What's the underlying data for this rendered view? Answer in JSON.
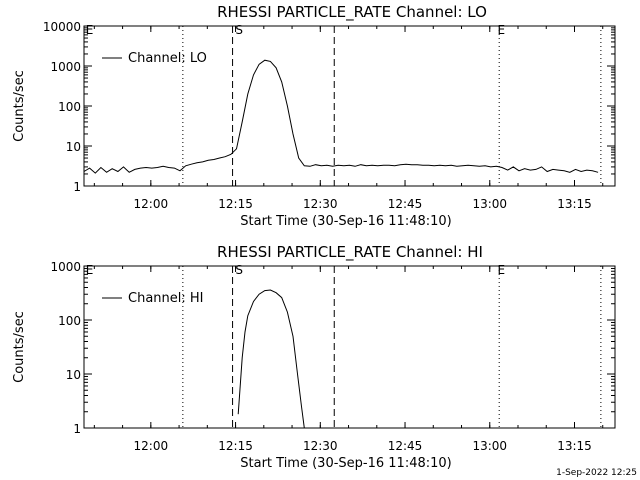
{
  "footer_timestamp": "1-Sep-2022 12:25",
  "chart_data": [
    {
      "type": "line",
      "title": "RHESSI PARTICLE_RATE Channel: LO",
      "xlabel": "Start Time (30-Sep-16 11:48:10)",
      "ylabel": "Counts/sec",
      "legend": "Channel: LO",
      "legend_position": "top-left",
      "yscale": "log",
      "x_unit": "minutes after 11:48:10",
      "xlim": [
        0,
        94
      ],
      "ylim": [
        1,
        10000
      ],
      "x_ticks": [
        {
          "x": 11.83,
          "label": "12:00"
        },
        {
          "x": 26.83,
          "label": "12:15"
        },
        {
          "x": 41.83,
          "label": "12:30"
        },
        {
          "x": 56.83,
          "label": "12:45"
        },
        {
          "x": 71.83,
          "label": "13:00"
        },
        {
          "x": 86.83,
          "label": "13:15"
        }
      ],
      "y_ticks": [
        {
          "y": 1,
          "label": "1"
        },
        {
          "y": 10,
          "label": "10"
        },
        {
          "y": 100,
          "label": "100"
        },
        {
          "y": 1000,
          "label": "1000"
        },
        {
          "y": 10000,
          "label": "10000"
        }
      ],
      "dotted_lines_x": [
        17.5,
        73.5,
        91.5
      ],
      "dashed_lines_x": [
        26.3,
        44.3
      ],
      "markers": [
        {
          "x": 0.3,
          "label": "E"
        },
        {
          "x": 26.8,
          "label": "S"
        },
        {
          "x": 73.2,
          "label": "E"
        }
      ],
      "series": [
        {
          "name": "Channel: LO",
          "x": [
            0,
            1,
            2,
            3,
            4,
            5,
            6,
            7,
            8,
            9,
            10,
            11,
            12,
            13,
            14,
            15,
            16,
            17,
            18,
            19,
            20,
            21,
            22,
            23,
            24,
            25,
            26,
            27,
            28,
            29,
            30,
            31,
            32,
            33,
            34,
            35,
            36,
            37,
            38,
            39,
            40,
            41,
            42,
            43,
            44,
            45,
            46,
            47,
            48,
            49,
            50,
            51,
            52,
            53,
            54,
            55,
            56,
            57,
            58,
            59,
            60,
            61,
            62,
            63,
            64,
            65,
            66,
            67,
            68,
            69,
            70,
            71,
            72,
            73,
            74,
            75,
            76,
            77,
            78,
            79,
            80,
            81,
            82,
            83,
            84,
            85,
            86,
            87,
            88,
            89,
            90,
            91
          ],
          "y": [
            2.3,
            2.8,
            2.1,
            2.9,
            2.2,
            2.7,
            2.3,
            3.0,
            2.2,
            2.6,
            2.8,
            2.9,
            2.8,
            2.9,
            3.1,
            2.9,
            2.8,
            2.4,
            3.2,
            3.5,
            3.8,
            4.0,
            4.4,
            4.6,
            5.0,
            5.4,
            6.2,
            8.5,
            40,
            200,
            600,
            1100,
            1400,
            1300,
            900,
            400,
            100,
            20,
            5,
            3.2,
            3.1,
            3.4,
            3.2,
            3.3,
            3.1,
            3.3,
            3.2,
            3.3,
            3.1,
            3.4,
            3.2,
            3.3,
            3.2,
            3.3,
            3.3,
            3.2,
            3.4,
            3.5,
            3.4,
            3.4,
            3.3,
            3.3,
            3.2,
            3.3,
            3.2,
            3.3,
            3.1,
            3.2,
            3.3,
            3.2,
            3.1,
            3.2,
            3.0,
            3.1,
            2.9,
            2.5,
            3.0,
            2.4,
            2.7,
            2.5,
            2.6,
            3.0,
            2.3,
            2.6,
            2.5,
            2.4,
            2.2,
            2.6,
            2.3,
            2.5,
            2.4,
            2.2
          ]
        }
      ]
    },
    {
      "type": "line",
      "title": "RHESSI PARTICLE_RATE Channel: HI",
      "xlabel": "Start Time (30-Sep-16 11:48:10)",
      "ylabel": "Counts/sec",
      "legend": "Channel: HI",
      "legend_position": "top-left",
      "yscale": "log",
      "x_unit": "minutes after 11:48:10",
      "xlim": [
        0,
        94
      ],
      "ylim": [
        1,
        1000
      ],
      "x_ticks": [
        {
          "x": 11.83,
          "label": "12:00"
        },
        {
          "x": 26.83,
          "label": "12:15"
        },
        {
          "x": 41.83,
          "label": "12:30"
        },
        {
          "x": 56.83,
          "label": "12:45"
        },
        {
          "x": 71.83,
          "label": "13:00"
        },
        {
          "x": 86.83,
          "label": "13:15"
        }
      ],
      "y_ticks": [
        {
          "y": 1,
          "label": "1"
        },
        {
          "y": 10,
          "label": "10"
        },
        {
          "y": 100,
          "label": "100"
        },
        {
          "y": 1000,
          "label": "1000"
        }
      ],
      "dotted_lines_x": [
        17.5,
        73.5,
        91.5
      ],
      "dashed_lines_x": [
        26.3,
        44.3
      ],
      "markers": [
        {
          "x": 0.3,
          "label": "E"
        },
        {
          "x": 26.8,
          "label": "S"
        },
        {
          "x": 73.2,
          "label": "E"
        }
      ],
      "series": [
        {
          "name": "Channel: HI",
          "x": [
            27.3,
            27.6,
            28.0,
            28.5,
            29.0,
            30.0,
            31.0,
            32.0,
            33.0,
            34.0,
            35.0,
            36.0,
            37.0,
            37.8,
            38.5,
            39.0
          ],
          "y": [
            1.8,
            5,
            20,
            60,
            120,
            220,
            300,
            350,
            360,
            320,
            260,
            140,
            50,
            10,
            2.5,
            1.0
          ]
        }
      ]
    }
  ]
}
